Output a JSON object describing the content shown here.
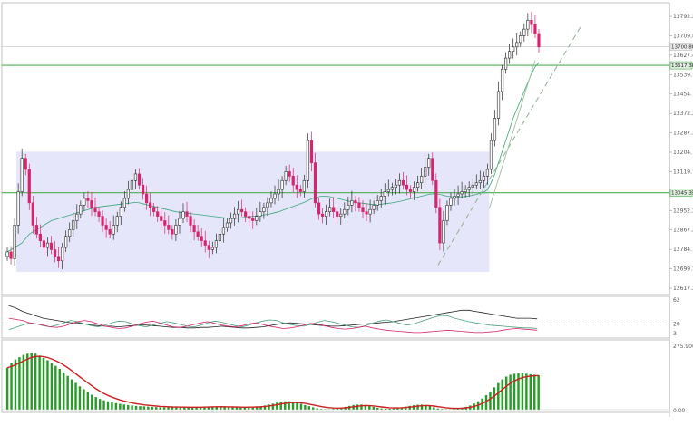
{
  "chart_data": [
    {
      "type": "candlestick",
      "pane": "price",
      "ylim": [
        12617,
        13870
      ],
      "price_axis_ticks": [
        "13792.20",
        "13709.80",
        "13627.40",
        "13539.70",
        "13454.70",
        "13372.20",
        "13287.20",
        "13204.70",
        "13119.70",
        "13035.20",
        "12952.20",
        "12867.20",
        "12784.70",
        "12699.70",
        "12617.20"
      ],
      "price_tags": [
        {
          "label": "13700.80",
          "value": 13700.8,
          "style": "gray"
        },
        {
          "label": "13617.38",
          "value": 13617.38,
          "style": "green"
        },
        {
          "label": "13045.33",
          "value": 13045.33,
          "style": "green"
        }
      ],
      "horizontal_lines": [
        {
          "value": 13617.38,
          "color": "#4caf50"
        },
        {
          "value": 13045.33,
          "color": "#4caf50"
        },
        {
          "value": 13700.8,
          "color": "#cccccc"
        }
      ],
      "range_box": {
        "x_start": 3,
        "x_end": 132,
        "y_top": 13230,
        "y_bottom": 12690,
        "color": "#e6e6fa"
      },
      "colors": {
        "bull": "#2b2b2b",
        "bear": "#d6246e",
        "ma": "#3aa77a",
        "trend": "#9ebf9e"
      },
      "closes": [
        12780,
        12750,
        12900,
        13050,
        13200,
        13150,
        13000,
        12900,
        12860,
        12830,
        12800,
        12820,
        12790,
        12760,
        12740,
        12800,
        12850,
        12880,
        12920,
        12950,
        12990,
        13020,
        13010,
        12980,
        12960,
        12940,
        12900,
        12880,
        12860,
        12900,
        12940,
        12980,
        13020,
        13060,
        13100,
        13130,
        13080,
        13040,
        13000,
        12980,
        12960,
        12940,
        12920,
        12900,
        12880,
        12860,
        12900,
        12930,
        12960,
        12940,
        12900,
        12870,
        12850,
        12830,
        12810,
        12790,
        12800,
        12830,
        12860,
        12890,
        12910,
        12930,
        12950,
        12970,
        12960,
        12940,
        12930,
        12920,
        12940,
        12960,
        12980,
        13000,
        13020,
        13040,
        13060,
        13100,
        13140,
        13120,
        13080,
        13060,
        13050,
        13100,
        13280,
        13180,
        13000,
        12950,
        12940,
        12960,
        12980,
        12960,
        12940,
        12950,
        12970,
        12990,
        13010,
        13000,
        12980,
        12960,
        12950,
        12970,
        12990,
        13010,
        13030,
        13050,
        13060,
        13070,
        13080,
        13100,
        13080,
        13060,
        13050,
        13070,
        13090,
        13120,
        13160,
        13200,
        13100,
        12980,
        12820,
        12920,
        12990,
        13020,
        13030,
        13040,
        13050,
        13060,
        13070,
        13080,
        13090,
        13100,
        13120,
        13150,
        13280,
        13380,
        13500,
        13600,
        13650,
        13680,
        13700,
        13720,
        13750,
        13780,
        13820,
        13800,
        13760,
        13700
      ],
      "ma_line": [
        12780,
        12790,
        12800,
        12810,
        12820,
        12840,
        12860,
        12870,
        12880,
        12890,
        12900,
        12910,
        12920,
        12925,
        12930,
        12935,
        12940,
        12945,
        12950,
        12955,
        12960,
        12965,
        12970,
        12975,
        12980,
        12982,
        12984,
        12986,
        12988,
        12990,
        12992,
        12994,
        12996,
        12998,
        13000,
        13002,
        13000,
        12996,
        12992,
        12988,
        12984,
        12980,
        12976,
        12972,
        12968,
        12964,
        12960,
        12958,
        12956,
        12954,
        12952,
        12950,
        12948,
        12946,
        12944,
        12942,
        12940,
        12938,
        12936,
        12934,
        12932,
        12930,
        12930,
        12932,
        12934,
        12936,
        12938,
        12940,
        12942,
        12944,
        12946,
        12948,
        12952,
        12956,
        12960,
        12966,
        12972,
        12978,
        12984,
        12990,
        12996,
        13002,
        13010,
        13018,
        13024,
        13028,
        13030,
        13030,
        13028,
        13024,
        13020,
        13016,
        13012,
        13008,
        13005,
        13002,
        13000,
        12998,
        12996,
        12994,
        12993,
        12993,
        12994,
        12996,
        12998,
        13000,
        13003,
        13006,
        13010,
        13014,
        13018,
        13022,
        13026,
        13030,
        13034,
        13038,
        13040,
        13040,
        13038,
        13034,
        13030,
        13028,
        13026,
        13026,
        13027,
        13029,
        13031,
        13034,
        13038,
        13043,
        13048,
        13060,
        13090,
        13130,
        13180,
        13230,
        13280,
        13330,
        13380,
        13420,
        13460,
        13500,
        13540,
        13580,
        13610,
        13630
      ]
    },
    {
      "type": "line",
      "pane": "adx",
      "ylim": [
        0,
        62
      ],
      "axis_ticks": [
        "62",
        "20",
        "3"
      ],
      "series": [
        {
          "name": "ADX",
          "color": "#222222",
          "values": [
            52,
            48,
            42,
            38,
            34,
            30,
            28,
            26,
            24,
            22,
            22,
            20,
            18,
            17,
            16,
            16,
            15,
            16,
            17,
            18,
            18,
            17,
            16,
            15,
            14,
            14,
            13,
            13,
            14,
            14,
            15,
            16,
            15,
            14,
            13,
            13,
            14,
            15,
            17,
            19,
            21,
            22,
            21,
            20,
            19,
            18,
            17,
            16,
            16,
            17,
            18,
            19,
            20,
            21,
            22,
            23,
            24,
            26,
            28,
            30,
            32,
            34,
            36,
            38,
            40,
            42,
            44,
            44,
            42,
            40,
            38,
            36,
            34,
            32,
            30,
            30,
            30,
            29
          ]
        },
        {
          "name": "+DI",
          "color": "#4aa07a",
          "values": [
            10,
            14,
            18,
            22,
            20,
            17,
            15,
            18,
            22,
            26,
            24,
            20,
            17,
            15,
            18,
            22,
            25,
            24,
            20,
            17,
            15,
            18,
            21,
            24,
            22,
            19,
            16,
            15,
            18,
            22,
            25,
            23,
            20,
            17,
            15,
            18,
            22,
            25,
            27,
            26,
            22,
            19,
            17,
            16,
            19,
            23,
            26,
            24,
            21,
            18,
            15,
            14,
            17,
            21,
            25,
            27,
            24,
            21,
            18,
            20,
            24,
            28,
            32,
            35,
            34,
            30,
            27,
            24,
            22,
            20,
            18,
            17,
            16,
            15,
            14,
            13,
            13,
            12
          ]
        },
        {
          "name": "-DI",
          "color": "#d6246e",
          "values": [
            30,
            28,
            26,
            22,
            20,
            18,
            15,
            14,
            16,
            20,
            24,
            26,
            24,
            20,
            16,
            14,
            12,
            13,
            16,
            20,
            23,
            25,
            22,
            18,
            15,
            14,
            16,
            19,
            22,
            24,
            21,
            18,
            16,
            15,
            17,
            20,
            22,
            19,
            16,
            14,
            12,
            13,
            15,
            18,
            21,
            20,
            17,
            14,
            12,
            11,
            12,
            14,
            16,
            13,
            11,
            9,
            8,
            7,
            6,
            5,
            5,
            6,
            7,
            8,
            9,
            8,
            7,
            6,
            5,
            5,
            6,
            7,
            9,
            11,
            12,
            11,
            10,
            9
          ]
        }
      ],
      "reference_lines": [
        20
      ]
    },
    {
      "type": "bar",
      "pane": "macd",
      "ylim": [
        0,
        280
      ],
      "axis_ticks": [
        "275.906",
        "0.00"
      ],
      "colors": {
        "histogram": "#2a9a2a",
        "signal": "#cc1f1f"
      },
      "histogram": [
        180,
        200,
        215,
        225,
        235,
        240,
        245,
        240,
        232,
        222,
        212,
        200,
        188,
        175,
        160,
        145,
        130,
        115,
        100,
        88,
        76,
        64,
        54,
        46,
        40,
        36,
        32,
        28,
        25,
        22,
        20,
        18,
        16,
        15,
        14,
        13,
        12,
        11,
        10,
        10,
        10,
        10,
        10,
        10,
        10,
        10,
        10,
        10,
        11,
        12,
        13,
        14,
        14,
        13,
        12,
        11,
        10,
        10,
        10,
        10,
        11,
        12,
        13,
        15,
        18,
        22,
        26,
        30,
        34,
        36,
        36,
        34,
        30,
        25,
        20,
        15,
        10,
        6,
        3,
        2,
        2,
        3,
        5,
        8,
        12,
        16,
        20,
        22,
        22,
        20,
        16,
        12,
        8,
        5,
        4,
        4,
        5,
        7,
        10,
        13,
        16,
        19,
        21,
        22,
        20,
        16,
        10,
        5,
        3,
        2,
        2,
        3,
        5,
        8,
        12,
        18,
        26,
        36,
        48,
        62,
        78,
        96,
        114,
        130,
        142,
        150,
        154,
        156,
        156,
        154,
        152,
        150,
        148
      ]
    }
  ]
}
